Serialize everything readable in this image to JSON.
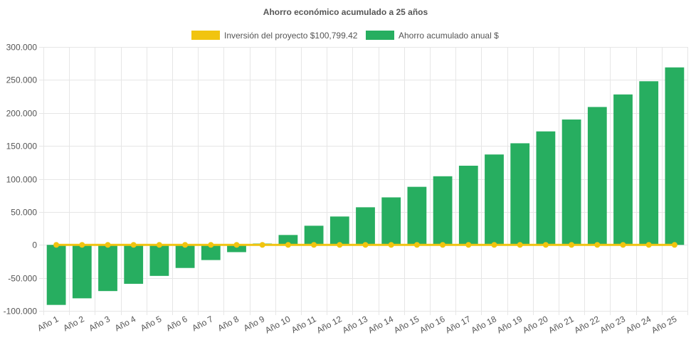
{
  "chart_data": {
    "type": "bar",
    "title": "Ahorro económico acumulado a 25 años",
    "categories": [
      "Año 1",
      "Año 2",
      "Año 3",
      "Año 4",
      "Año 5",
      "Año 6",
      "Año 7",
      "Año 8",
      "Año 9",
      "Año 10",
      "Año 11",
      "Año 12",
      "Año 13",
      "Año 14",
      "Año 15",
      "Año 16",
      "Año 17",
      "Año 18",
      "Año 19",
      "Año 20",
      "Año 21",
      "Año 22",
      "Año 23",
      "Año 24",
      "Año 25"
    ],
    "series": [
      {
        "name": "Inversión del proyecto $100,799.42",
        "type": "line",
        "color": "#f1c40f",
        "values": [
          0,
          0,
          0,
          0,
          0,
          0,
          0,
          0,
          0,
          0,
          0,
          0,
          0,
          0,
          0,
          0,
          0,
          0,
          0,
          0,
          0,
          0,
          0,
          0,
          0
        ]
      },
      {
        "name": "Ahorro acumulado anual $",
        "type": "bar",
        "color": "#27ae60",
        "values": [
          -91000,
          -81000,
          -70000,
          -59000,
          -47000,
          -35000,
          -23000,
          -11000,
          2000,
          15000,
          29000,
          43000,
          57000,
          72000,
          88000,
          104000,
          120000,
          137000,
          154000,
          172000,
          190000,
          209000,
          228000,
          248000,
          269000
        ]
      }
    ],
    "ylim": [
      -100000,
      300000
    ],
    "yticks": [
      {
        "value": 300000,
        "label": "300.000"
      },
      {
        "value": 250000,
        "label": "250.000"
      },
      {
        "value": 200000,
        "label": "200.000"
      },
      {
        "value": 150000,
        "label": "150.000"
      },
      {
        "value": 100000,
        "label": "100.000"
      },
      {
        "value": 50000,
        "label": "50.000"
      },
      {
        "value": 0,
        "label": "0"
      },
      {
        "value": -50000,
        "label": "-50.000"
      },
      {
        "value": -100000,
        "label": "-100.000"
      }
    ],
    "xlabel": "",
    "ylabel": "",
    "legend_position": "top",
    "grid": true
  }
}
